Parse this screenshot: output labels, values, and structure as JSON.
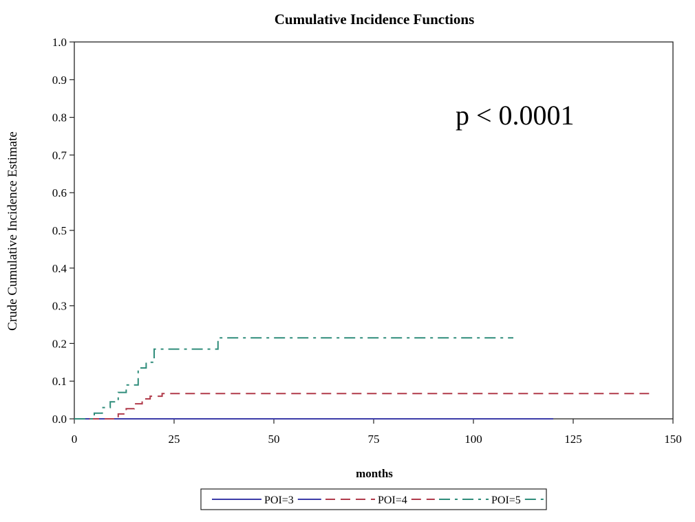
{
  "chart_data": {
    "type": "line",
    "step": true,
    "title": "Cumulative Incidence Functions",
    "xlabel": "months",
    "ylabel": "Crude Cumulative Incidence Estimate",
    "xlim": [
      0,
      150
    ],
    "ylim": [
      0,
      1.0
    ],
    "x_ticks": [
      0,
      25,
      50,
      75,
      100,
      125,
      150
    ],
    "x_tick_labels": [
      "0",
      "25",
      "50",
      "75",
      "100",
      "125",
      "150"
    ],
    "y_ticks": [
      0,
      0.1,
      0.2,
      0.3,
      0.4,
      0.5,
      0.6,
      0.7,
      0.8,
      0.9,
      1.0
    ],
    "y_tick_labels": [
      "0.0",
      "0.1",
      "0.2",
      "0.3",
      "0.4",
      "0.5",
      "0.6",
      "0.7",
      "0.8",
      "0.9",
      "1.0"
    ],
    "grid": false,
    "legend_position": "bottom",
    "annotation": "p < 0.0001",
    "series": [
      {
        "name": "POI=3",
        "color": "#3b3ba8",
        "dash": "solid",
        "x": [
          0,
          120
        ],
        "y": [
          0.0,
          0.0
        ]
      },
      {
        "name": "POI=4",
        "color": "#b03a4a",
        "dash": "dash",
        "x": [
          0,
          11,
          13,
          15,
          17,
          19,
          22,
          145
        ],
        "y": [
          0.0,
          0.013,
          0.027,
          0.04,
          0.053,
          0.06,
          0.067,
          0.067
        ]
      },
      {
        "name": "POI=5",
        "color": "#2e8c7a",
        "dash": "dashdot",
        "x": [
          0,
          5,
          7,
          9,
          11,
          13,
          16,
          18,
          20,
          25,
          36,
          110
        ],
        "y": [
          0.0,
          0.015,
          0.03,
          0.045,
          0.07,
          0.09,
          0.135,
          0.15,
          0.185,
          0.185,
          0.215,
          0.215
        ]
      }
    ]
  }
}
